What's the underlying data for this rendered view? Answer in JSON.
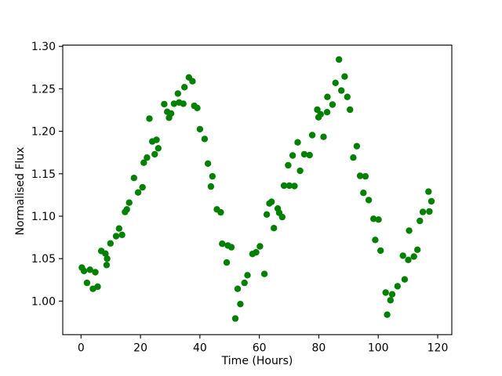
{
  "figure": {
    "background": "#ffffff",
    "plot_border_color": "#000000",
    "tick_color": "#000000",
    "text_color": "#000000"
  },
  "chart_data": {
    "type": "scatter",
    "title": "",
    "xlabel": "Time (Hours)",
    "ylabel": "Normalised Flux",
    "legend": null,
    "grid": false,
    "marker": "circle",
    "marker_color": "#008000",
    "marker_radius_px": 4.2,
    "xlim": [
      -6.15,
      124.75
    ],
    "ylim": [
      0.9605,
      1.3015
    ],
    "xticks": [
      0,
      20,
      40,
      60,
      80,
      100,
      120
    ],
    "xtick_labels": [
      "0",
      "20",
      "40",
      "60",
      "80",
      "100",
      "120"
    ],
    "yticks": [
      1.0,
      1.05,
      1.1,
      1.15,
      1.2,
      1.25,
      1.3
    ],
    "ytick_labels": [
      "1.00",
      "1.05",
      "1.10",
      "1.15",
      "1.20",
      "1.25",
      "1.30"
    ],
    "series": [
      {
        "name": "normalised-flux",
        "x": [
          0.3,
          1.0,
          2.0,
          3.0,
          4.0,
          4.8,
          5.6,
          6.8,
          8.2,
          8.6,
          8.8,
          9.9,
          11.8,
          12.8,
          13.8,
          14.8,
          15.4,
          16.2,
          17.8,
          19.2,
          20.7,
          21.1,
          22.2,
          23.0,
          24.0,
          24.8,
          25.4,
          26.0,
          28.0,
          29.0,
          29.6,
          30.3,
          31.3,
          32.6,
          33.0,
          34.4,
          34.8,
          36.3,
          37.5,
          38.1,
          39.1,
          40.0,
          41.6,
          42.7,
          43.7,
          44.2,
          45.7,
          47.0,
          47.5,
          49.0,
          49.4,
          50.6,
          51.9,
          52.7,
          53.6,
          55.0,
          56.0,
          57.7,
          58.9,
          60.2,
          61.7,
          62.5,
          63.4,
          64.1,
          64.9,
          66.2,
          66.7,
          67.7,
          68.3,
          69.7,
          70.1,
          71.2,
          71.8,
          72.9,
          73.7,
          75.1,
          76.9,
          77.8,
          79.5,
          79.9,
          80.6,
          81.6,
          82.8,
          82.9,
          84.6,
          85.6,
          86.8,
          87.6,
          88.7,
          89.6,
          90.5,
          91.6,
          92.8,
          93.9,
          95.0,
          95.7,
          96.8,
          98.4,
          99.0,
          100.1,
          100.8,
          102.5,
          103.0,
          104.1,
          104.7,
          106.5,
          108.3,
          108.9,
          110.1,
          110.4,
          112.0,
          113.2,
          114.0,
          115.0,
          116.9,
          117.2,
          117.9
        ],
        "y": [
          1.0395,
          1.0355,
          1.0215,
          1.037,
          1.0145,
          1.034,
          1.017,
          1.059,
          1.056,
          1.0425,
          1.05,
          1.068,
          1.0765,
          1.0855,
          1.078,
          1.105,
          1.108,
          1.116,
          1.145,
          1.128,
          1.134,
          1.163,
          1.169,
          1.215,
          1.188,
          1.173,
          1.19,
          1.18,
          1.232,
          1.223,
          1.216,
          1.221,
          1.2325,
          1.2445,
          1.234,
          1.2325,
          1.252,
          1.2635,
          1.259,
          1.23,
          1.2275,
          1.2025,
          1.191,
          1.162,
          1.135,
          1.147,
          1.108,
          1.1045,
          1.0675,
          1.0455,
          1.0655,
          1.0635,
          0.9795,
          1.0145,
          0.9965,
          1.0215,
          1.0305,
          1.0555,
          1.0575,
          1.0645,
          1.032,
          1.102,
          1.115,
          1.117,
          1.086,
          1.109,
          1.104,
          1.099,
          1.136,
          1.16,
          1.136,
          1.1715,
          1.1355,
          1.187,
          1.1535,
          1.173,
          1.172,
          1.1955,
          1.2255,
          1.2165,
          1.22,
          1.1935,
          1.2225,
          1.2405,
          1.2315,
          1.257,
          1.2845,
          1.248,
          1.2645,
          1.2405,
          1.2255,
          1.169,
          1.1825,
          1.1475,
          1.1275,
          1.147,
          1.119,
          1.097,
          1.072,
          1.096,
          1.0595,
          1.01,
          0.984,
          1.001,
          1.008,
          1.0175,
          1.0535,
          1.0255,
          1.0485,
          1.083,
          1.0525,
          1.0605,
          1.0945,
          1.105,
          1.129,
          1.1055,
          1.1175
        ]
      }
    ]
  }
}
